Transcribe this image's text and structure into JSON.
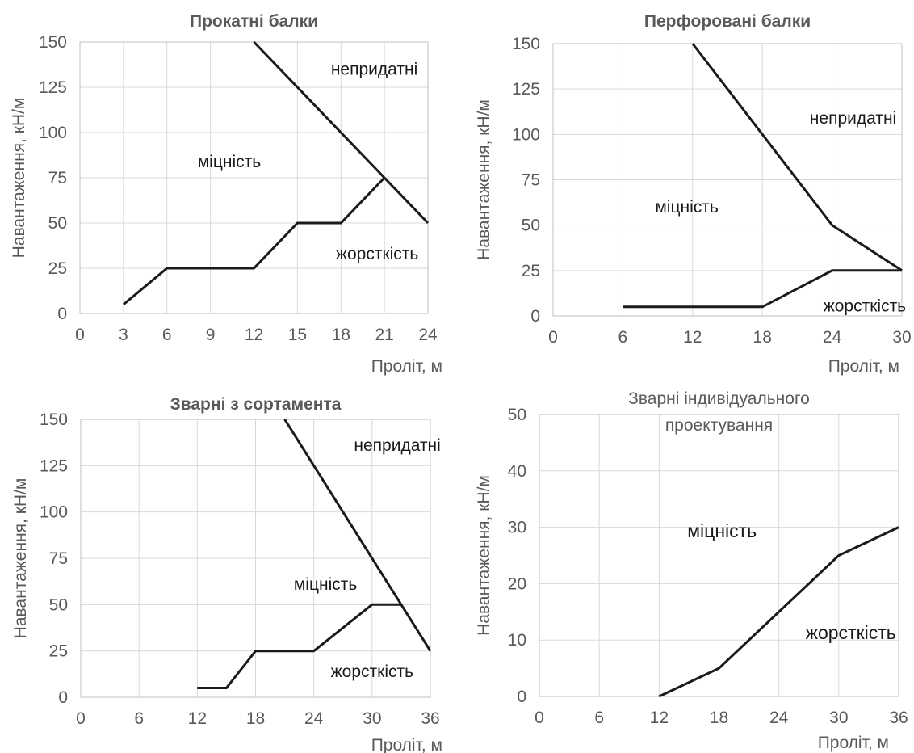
{
  "chart_data": [
    {
      "type": "line",
      "title": "Прокатні балки",
      "xlabel": "Проліт,  м",
      "ylabel": "Навантаження,  кН/м",
      "xlim": [
        0,
        24
      ],
      "ylim": [
        0,
        150
      ],
      "xticks": [
        0,
        3,
        6,
        9,
        12,
        15,
        18,
        21,
        24
      ],
      "yticks": [
        0,
        25,
        50,
        75,
        100,
        125,
        150
      ],
      "grid": true,
      "series": [
        {
          "x": [
            12,
            21,
            24
          ],
          "y": [
            150,
            75,
            50
          ]
        },
        {
          "x": [
            3,
            6,
            12,
            15,
            18,
            21
          ],
          "y": [
            5,
            25,
            25,
            50,
            50,
            75
          ]
        }
      ],
      "annotations": [
        {
          "text": "непридатні",
          "x": 20.3,
          "y": 135
        },
        {
          "text": "міцність",
          "x": 10.3,
          "y": 84
        },
        {
          "text": "жорсткість",
          "x": 20.5,
          "y": 33
        }
      ]
    },
    {
      "type": "line",
      "title": "Перфоровані балки",
      "xlabel": "Проліт,  м",
      "ylabel": "Навантаження,  кН/м",
      "xlim": [
        0,
        30
      ],
      "ylim": [
        0,
        150
      ],
      "xticks": [
        0,
        6,
        12,
        18,
        24,
        30
      ],
      "yticks": [
        0,
        25,
        50,
        75,
        100,
        125,
        150
      ],
      "grid": true,
      "series": [
        {
          "x": [
            12,
            18,
            24,
            30
          ],
          "y": [
            150,
            100,
            50,
            25
          ]
        },
        {
          "x": [
            6,
            18,
            24,
            30
          ],
          "y": [
            5,
            5,
            25,
            25
          ]
        }
      ],
      "annotations": [
        {
          "text": "непридатні",
          "x": 25.8,
          "y": 109
        },
        {
          "text": "міцність",
          "x": 11.5,
          "y": 60
        },
        {
          "text": "жорсткість",
          "x": 26.8,
          "y": 5.5
        }
      ]
    },
    {
      "type": "line",
      "title": "Зварні з сортамента",
      "xlabel": "Проліт,  м",
      "ylabel": "Навантаження,  кН/м",
      "xlim": [
        0,
        36
      ],
      "ylim": [
        0,
        150
      ],
      "xticks": [
        0,
        6,
        12,
        18,
        24,
        30,
        36
      ],
      "yticks": [
        0,
        25,
        50,
        75,
        100,
        125,
        150
      ],
      "grid": true,
      "series": [
        {
          "x": [
            21,
            36
          ],
          "y": [
            150,
            25
          ]
        },
        {
          "x": [
            12,
            15,
            18,
            24,
            30,
            33
          ],
          "y": [
            5,
            5,
            25,
            25,
            50,
            50
          ]
        }
      ],
      "annotations": [
        {
          "text": "непридатні",
          "x": 32.6,
          "y": 136
        },
        {
          "text": "міцність",
          "x": 25.2,
          "y": 61
        },
        {
          "text": "жорсткість",
          "x": 30.0,
          "y": 14
        }
      ]
    },
    {
      "type": "line",
      "title": "Зварні індивідуального проектування",
      "title_lines": [
        "Зварні індивідуального",
        "проектування"
      ],
      "xlabel": "Проліт,  м",
      "ylabel": "Навантаження,  кН/м",
      "xlim": [
        0,
        36
      ],
      "ylim": [
        0,
        50
      ],
      "xticks": [
        0,
        6,
        12,
        18,
        24,
        30,
        36
      ],
      "yticks": [
        0,
        10,
        20,
        30,
        40,
        50
      ],
      "grid": true,
      "series": [
        {
          "x": [
            12,
            18,
            30,
            36
          ],
          "y": [
            0,
            5,
            25,
            30
          ]
        }
      ],
      "annotations": [
        {
          "text": "міцність",
          "x": 18.3,
          "y": 29.2
        },
        {
          "text": "жорсткість",
          "x": 31.2,
          "y": 11.2
        }
      ]
    }
  ]
}
